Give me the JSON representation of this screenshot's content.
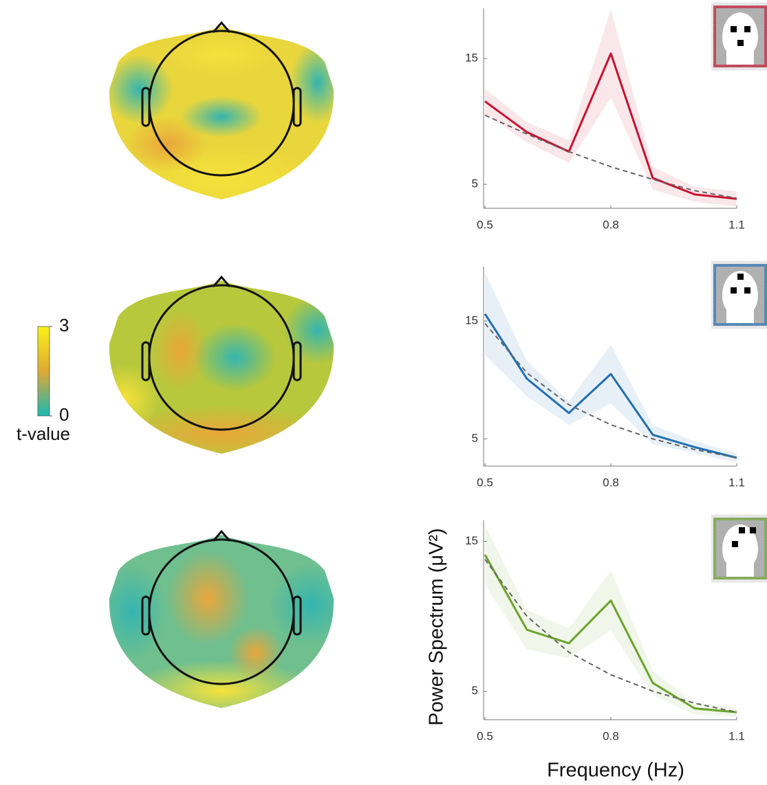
{
  "chart_data": [
    {
      "type": "line",
      "x": [
        0.5,
        0.6,
        0.7,
        0.8,
        0.9,
        1.0,
        1.1
      ],
      "xlim": [
        0.5,
        1.1
      ],
      "xticks": [
        0.5,
        0.8,
        1.1
      ],
      "ylim": [
        3.1,
        19
      ],
      "yticks": [
        5,
        15
      ],
      "series": [
        {
          "color": "#c8102e",
          "values": [
            11.6,
            9.15,
            7.6,
            15.4,
            5.5,
            4.2,
            3.85
          ],
          "lower": [
            10.6,
            8.35,
            6.7,
            11.9,
            4.6,
            3.6,
            3.25
          ],
          "upper": [
            12.6,
            9.95,
            8.5,
            18.9,
            6.4,
            4.8,
            4.45
          ]
        },
        {
          "color": "#666666",
          "dash": true,
          "values": [
            10.5,
            9.0,
            7.6,
            6.4,
            5.4,
            4.5,
            3.9
          ]
        }
      ]
    },
    {
      "type": "line",
      "x": [
        0.5,
        0.6,
        0.7,
        0.8,
        0.9,
        1.0,
        1.1
      ],
      "xlim": [
        0.5,
        1.1
      ],
      "xticks": [
        0.5,
        0.8,
        1.1
      ],
      "ylim": [
        2.7,
        19.6
      ],
      "yticks": [
        5,
        15
      ],
      "series": [
        {
          "color": "#1f6fb2",
          "values": [
            15.6,
            10.1,
            7.2,
            10.5,
            5.35,
            4.3,
            3.4
          ],
          "lower": [
            12.1,
            8.6,
            6.2,
            8.0,
            4.55,
            3.8,
            3.0
          ],
          "upper": [
            19.1,
            11.6,
            8.2,
            13.0,
            6.15,
            4.8,
            3.8
          ]
        },
        {
          "color": "#666666",
          "dash": true,
          "values": [
            14.8,
            10.6,
            7.9,
            6.2,
            5.0,
            4.1,
            3.4
          ]
        }
      ]
    },
    {
      "type": "line",
      "x": [
        0.5,
        0.6,
        0.7,
        0.8,
        0.9,
        1.0,
        1.1
      ],
      "xlim": [
        0.5,
        1.1
      ],
      "xticks": [
        0.5,
        0.8,
        1.1
      ],
      "ylim": [
        3.1,
        16.4
      ],
      "yticks": [
        5,
        15
      ],
      "series": [
        {
          "color": "#6aa32c",
          "values": [
            14.1,
            9.1,
            8.2,
            11.05,
            5.55,
            3.85,
            3.6
          ],
          "lower": [
            12.1,
            7.8,
            7.2,
            9.05,
            4.75,
            3.45,
            3.3
          ],
          "upper": [
            16.1,
            10.4,
            9.2,
            13.05,
            6.35,
            4.25,
            3.9
          ]
        },
        {
          "color": "#666666",
          "dash": true,
          "values": [
            13.8,
            10.0,
            7.6,
            6.1,
            5.0,
            4.2,
            3.6
          ]
        }
      ]
    }
  ],
  "shared": {
    "xlabel": "Frequency (Hz)",
    "ylabel": "Power Spectrum (μV²)"
  },
  "colorbar": {
    "label": "t-value",
    "lim": [
      0,
      3
    ],
    "ticks": [
      0,
      3
    ]
  }
}
